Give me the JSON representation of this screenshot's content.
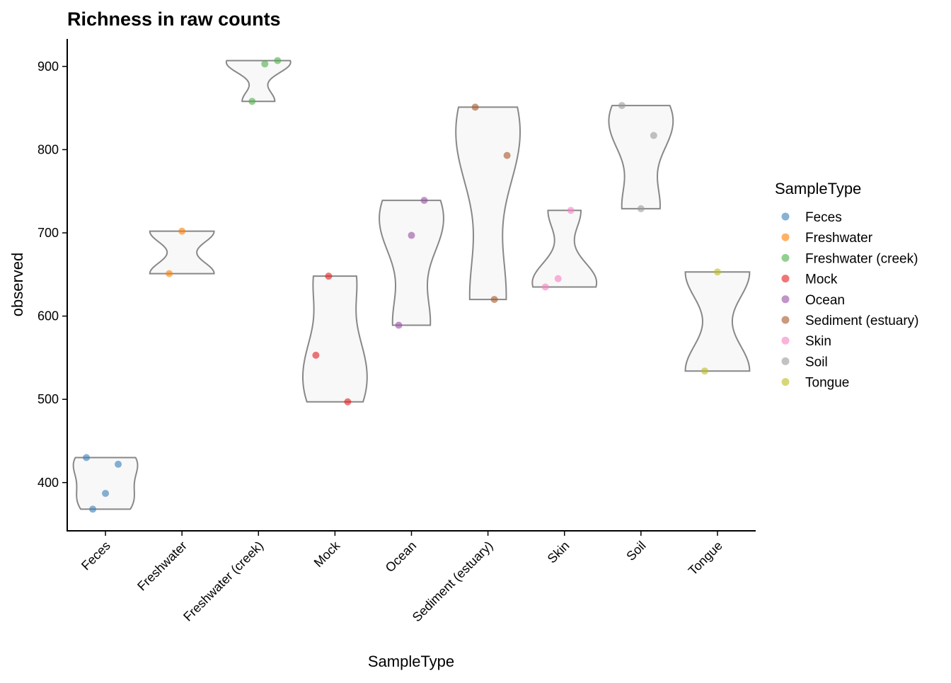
{
  "chart_data": {
    "type": "violin",
    "title": "Richness in raw counts",
    "x_label": "SampleType",
    "y_label": "observed",
    "legend_title": "SampleType",
    "categories": [
      "Feces",
      "Freshwater",
      "Freshwater (creek)",
      "Mock",
      "Ocean",
      "Sediment (estuary)",
      "Skin",
      "Soil",
      "Tongue"
    ],
    "series": [
      {
        "name": "Feces",
        "color": "#377eb8",
        "values": [
          430,
          422,
          387,
          368
        ]
      },
      {
        "name": "Freshwater",
        "color": "#ff7f00",
        "values": [
          702,
          651
        ]
      },
      {
        "name": "Freshwater (creek)",
        "color": "#4daf4a",
        "values": [
          907,
          903,
          858
        ]
      },
      {
        "name": "Mock",
        "color": "#e41a1c",
        "values": [
          648,
          553,
          497
        ]
      },
      {
        "name": "Ocean",
        "color": "#984ea3",
        "values": [
          739,
          697,
          589
        ]
      },
      {
        "name": "Sediment (estuary)",
        "color": "#a65628",
        "values": [
          851,
          793,
          620
        ]
      },
      {
        "name": "Skin",
        "color": "#f781bf",
        "values": [
          727,
          645,
          635
        ]
      },
      {
        "name": "Soil",
        "color": "#999999",
        "values": [
          853,
          817,
          729
        ]
      },
      {
        "name": "Tongue",
        "color": "#bcbd22",
        "values": [
          653,
          534
        ]
      }
    ],
    "ylim": [
      342,
      933
    ],
    "yticks": [
      400,
      500,
      600,
      700,
      800,
      900
    ]
  }
}
